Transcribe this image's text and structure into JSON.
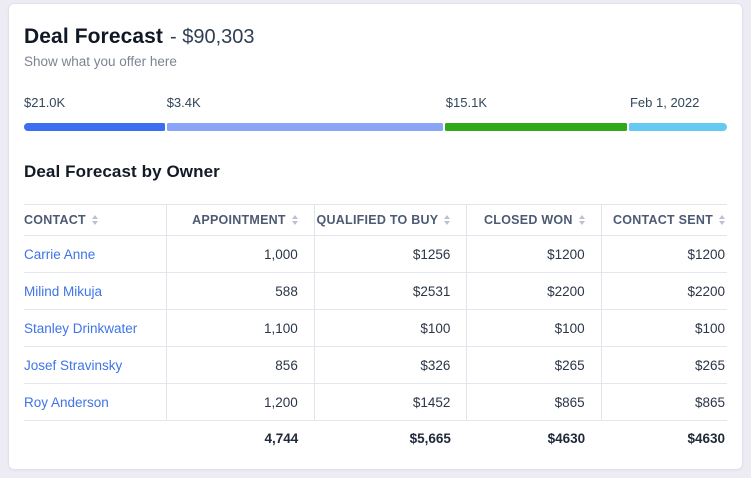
{
  "header": {
    "title": "Deal Forecast",
    "amount": "- $90,303",
    "subtitle": "Show what you offer here"
  },
  "funnel": {
    "segments": [
      {
        "label": "$21.0K",
        "color": "#3b6ef0",
        "width_pct": 20.0,
        "offset_pct": 0
      },
      {
        "label": "$3.4K",
        "color": "#8aa5f5",
        "width_pct": 39.3,
        "offset_pct": 20.3
      },
      {
        "label": "$15.1K",
        "color": "#2fa81a",
        "width_pct": 25.9,
        "offset_pct": 60.0
      },
      {
        "label": "Feb 1, 2022",
        "color": "#66c9f2",
        "width_pct": 13.9,
        "offset_pct": 86.2
      }
    ]
  },
  "table": {
    "title": "Deal Forecast by Owner",
    "columns": {
      "contact": "CONTACT",
      "appointment": "APPOINTMENT",
      "qualified": "QUALIFIED TO BUY",
      "closed": "CLOSED WON",
      "sent": "CONTACT SENT"
    },
    "rows": [
      {
        "contact": "Carrie Anne",
        "appointment": "1,000",
        "qualified": "$1256",
        "closed": "$1200",
        "sent": "$1200"
      },
      {
        "contact": "Milind Mikuja",
        "appointment": "588",
        "qualified": "$2531",
        "closed": "$2200",
        "sent": "$2200"
      },
      {
        "contact": "Stanley Drinkwater",
        "appointment": "1,100",
        "qualified": "$100",
        "closed": "$100",
        "sent": "$100"
      },
      {
        "contact": "Josef Stravinsky",
        "appointment": "856",
        "qualified": "$326",
        "closed": "$265",
        "sent": "$265"
      },
      {
        "contact": "Roy Anderson",
        "appointment": "1,200",
        "qualified": "$1452",
        "closed": "$865",
        "sent": "$865"
      }
    ],
    "totals": {
      "appointment": "4,744",
      "qualified": "$5,665",
      "closed": "$4630",
      "sent": "$4630"
    }
  },
  "colors": {
    "accent_blue": "#3b6ef0",
    "light_blue": "#8aa5f5",
    "green": "#2fa81a",
    "sky_blue": "#66c9f2",
    "link": "#3e74e6",
    "card_bg": "#ffffff",
    "page_bg": "#edecf4"
  }
}
